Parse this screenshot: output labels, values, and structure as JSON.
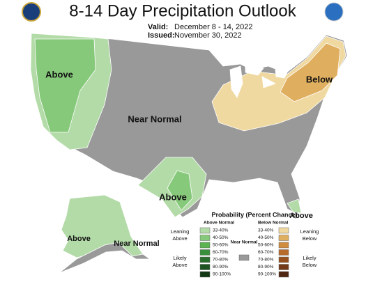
{
  "header": {
    "title": "8-14 Day Precipitation Outlook",
    "valid_label": "Valid:",
    "valid": "December 8 - 14, 2022",
    "issued_label": "Issued:",
    "issued": "November 30, 2022"
  },
  "regions": [
    {
      "label": "Above"
    },
    {
      "label": "Near Normal"
    },
    {
      "label": "Below"
    },
    {
      "label": "Above"
    },
    {
      "label": "Above"
    },
    {
      "label": "Near Normal"
    },
    {
      "label": "Above"
    }
  ],
  "legend": {
    "title": "Probability (Percent Chance)",
    "above_heading": "Above Normal",
    "below_heading": "Below Normal",
    "near": {
      "label": "Near Normal",
      "color": "#999999"
    },
    "leaning_above": "Leaning Above",
    "likely_above": "Likely Above",
    "leaning_below": "Leaning Below",
    "likely_below": "Likely Below",
    "above": [
      {
        "range": "33-40%",
        "color": "#b3dba8"
      },
      {
        "range": "40-50%",
        "color": "#86c97a"
      },
      {
        "range": "50-60%",
        "color": "#5cb450"
      },
      {
        "range": "60-70%",
        "color": "#3a8f3b"
      },
      {
        "range": "70-80%",
        "color": "#2a6e2c"
      },
      {
        "range": "80-90%",
        "color": "#1d5221"
      },
      {
        "range": "90-100%",
        "color": "#123816"
      }
    ],
    "below": [
      {
        "range": "33-40%",
        "color": "#f0d9a0"
      },
      {
        "range": "40-50%",
        "color": "#dfae5f"
      },
      {
        "range": "50-60%",
        "color": "#d08c3f"
      },
      {
        "range": "60-70%",
        "color": "#b86a2a"
      },
      {
        "range": "70-80%",
        "color": "#95501e"
      },
      {
        "range": "80-90%",
        "color": "#743a17"
      },
      {
        "range": "90-100%",
        "color": "#4f2610"
      }
    ]
  }
}
